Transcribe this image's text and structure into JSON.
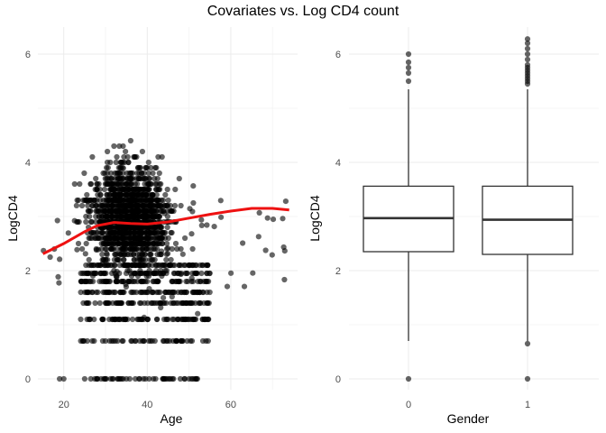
{
  "title": "Covariates vs. Log CD4 count",
  "colors": {
    "points": "#000000",
    "smooth": "#ee1111",
    "grid_major": "#ebebeb",
    "grid_minor": "#f5f5f5",
    "box": "#333333"
  },
  "chart_data": [
    {
      "type": "scatter",
      "xlabel": "Age",
      "ylabel": "LogCD4",
      "xlim": [
        13.8,
        76
      ],
      "ylim": [
        -0.2,
        6.5
      ],
      "xticks": [
        "20",
        "40",
        "60"
      ],
      "yticks": [
        "0",
        "2",
        "4",
        "6"
      ],
      "grid": true,
      "smooth_line": {
        "x": [
          15,
          20,
          25,
          28,
          32,
          36,
          40,
          45,
          50,
          55,
          60,
          65,
          70,
          74
        ],
        "y": [
          2.31,
          2.5,
          2.72,
          2.83,
          2.89,
          2.87,
          2.86,
          2.9,
          2.97,
          3.04,
          3.1,
          3.15,
          3.15,
          3.12
        ]
      },
      "points_summary": {
        "x_range": [
          15,
          74
        ],
        "y_range": [
          0,
          6.3
        ],
        "dense_region_x": [
          25,
          55
        ],
        "dense_region_y": [
          1.5,
          4.5
        ],
        "zero_value_ages": [
          19,
          20,
          25,
          28,
          30,
          33,
          35,
          38,
          42,
          46,
          50,
          52
        ]
      }
    },
    {
      "type": "box",
      "xlabel": "Gender",
      "ylabel": "LogCD4",
      "categories": [
        "0",
        "1"
      ],
      "ylim": [
        -0.2,
        6.5
      ],
      "yticks": [
        "0",
        "2",
        "4",
        "6"
      ],
      "grid": true,
      "boxes": [
        {
          "name": "0",
          "min": 0.7,
          "q1": 2.35,
          "median": 2.97,
          "q3": 3.56,
          "max": 5.35,
          "outliers": [
            0,
            5.5,
            5.65,
            5.75,
            5.85,
            6.0
          ]
        },
        {
          "name": "1",
          "min": 0.7,
          "q1": 2.3,
          "median": 2.94,
          "q3": 3.56,
          "max": 5.35,
          "outliers": [
            0,
            0.65,
            5.45,
            5.5,
            5.55,
            5.6,
            5.65,
            5.7,
            5.75,
            5.8,
            5.9,
            6.0,
            6.1,
            6.2,
            6.28
          ]
        }
      ]
    }
  ]
}
